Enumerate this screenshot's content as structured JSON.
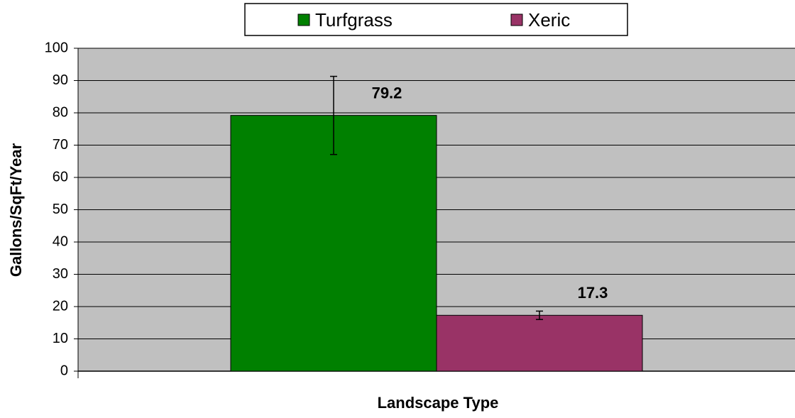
{
  "chart_data": {
    "type": "bar",
    "categories": [
      null
    ],
    "series": [
      {
        "name": "Turfgrass",
        "color": "#008000",
        "values": [
          79.2
        ],
        "errors": [
          12.1
        ]
      },
      {
        "name": "Xeric",
        "color": "#993366",
        "values": [
          17.3
        ],
        "errors": [
          1.3
        ]
      }
    ],
    "xlabel": "Landscape Type",
    "ylabel": "Gallons/SqFt/Year",
    "ylim": [
      0,
      100
    ],
    "yticks": [
      0,
      10,
      20,
      30,
      40,
      50,
      60,
      70,
      80,
      90,
      100
    ],
    "grid": true,
    "legend": "top",
    "background": "#c0c0c0"
  }
}
